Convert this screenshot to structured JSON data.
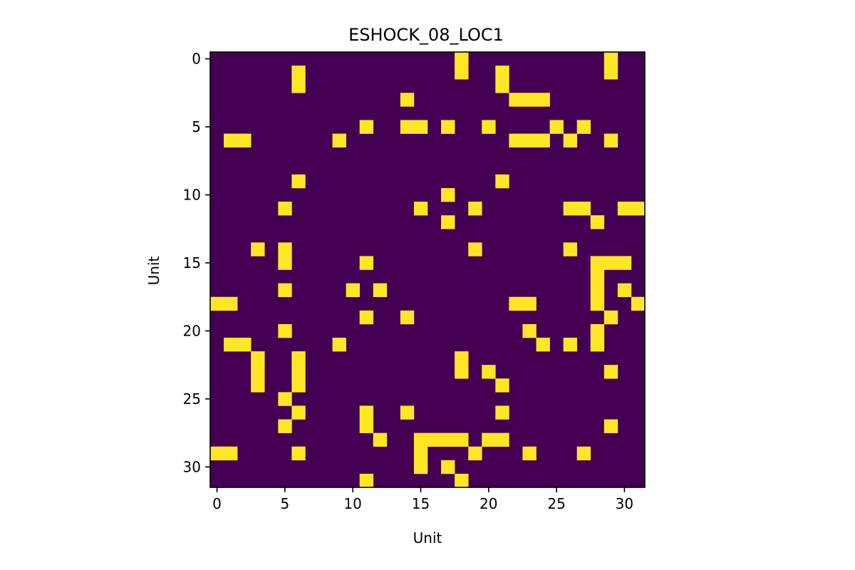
{
  "chart_data": {
    "type": "heatmap",
    "title": "ESHOCK_08_LOC1",
    "xlabel": "Unit",
    "ylabel": "Unit",
    "size": 32,
    "x_ticks": [
      "0",
      "5",
      "10",
      "15",
      "20",
      "25",
      "30"
    ],
    "y_ticks": [
      "0",
      "5",
      "10",
      "15",
      "20",
      "25",
      "30"
    ],
    "tick_values": [
      0,
      5,
      10,
      15,
      20,
      25,
      30
    ],
    "colors": {
      "low": "#440154",
      "high": "#fde725"
    },
    "active_cells": [
      [
        0,
        18
      ],
      [
        0,
        29
      ],
      [
        1,
        6
      ],
      [
        1,
        18
      ],
      [
        1,
        21
      ],
      [
        1,
        29
      ],
      [
        2,
        6
      ],
      [
        2,
        21
      ],
      [
        3,
        14
      ],
      [
        3,
        22
      ],
      [
        3,
        23
      ],
      [
        3,
        24
      ],
      [
        5,
        11
      ],
      [
        5,
        14
      ],
      [
        5,
        15
      ],
      [
        5,
        17
      ],
      [
        5,
        20
      ],
      [
        5,
        25
      ],
      [
        5,
        27
      ],
      [
        6,
        1
      ],
      [
        6,
        2
      ],
      [
        6,
        9
      ],
      [
        6,
        22
      ],
      [
        6,
        23
      ],
      [
        6,
        24
      ],
      [
        6,
        26
      ],
      [
        6,
        29
      ],
      [
        9,
        6
      ],
      [
        9,
        21
      ],
      [
        10,
        17
      ],
      [
        11,
        5
      ],
      [
        11,
        15
      ],
      [
        11,
        19
      ],
      [
        11,
        26
      ],
      [
        11,
        27
      ],
      [
        11,
        30
      ],
      [
        11,
        31
      ],
      [
        12,
        17
      ],
      [
        12,
        28
      ],
      [
        14,
        3
      ],
      [
        14,
        5
      ],
      [
        14,
        19
      ],
      [
        14,
        26
      ],
      [
        15,
        5
      ],
      [
        15,
        11
      ],
      [
        15,
        28
      ],
      [
        15,
        29
      ],
      [
        15,
        30
      ],
      [
        16,
        28
      ],
      [
        17,
        5
      ],
      [
        17,
        10
      ],
      [
        17,
        12
      ],
      [
        17,
        28
      ],
      [
        17,
        30
      ],
      [
        18,
        0
      ],
      [
        18,
        1
      ],
      [
        18,
        22
      ],
      [
        18,
        23
      ],
      [
        18,
        28
      ],
      [
        18,
        31
      ],
      [
        19,
        11
      ],
      [
        19,
        14
      ],
      [
        19,
        29
      ],
      [
        20,
        5
      ],
      [
        20,
        23
      ],
      [
        20,
        28
      ],
      [
        21,
        1
      ],
      [
        21,
        2
      ],
      [
        21,
        9
      ],
      [
        21,
        24
      ],
      [
        21,
        26
      ],
      [
        21,
        28
      ],
      [
        22,
        3
      ],
      [
        22,
        6
      ],
      [
        22,
        18
      ],
      [
        23,
        3
      ],
      [
        23,
        6
      ],
      [
        23,
        18
      ],
      [
        23,
        20
      ],
      [
        23,
        29
      ],
      [
        24,
        3
      ],
      [
        24,
        6
      ],
      [
        24,
        21
      ],
      [
        25,
        5
      ],
      [
        26,
        6
      ],
      [
        26,
        11
      ],
      [
        26,
        14
      ],
      [
        26,
        21
      ],
      [
        27,
        5
      ],
      [
        27,
        11
      ],
      [
        27,
        29
      ],
      [
        28,
        12
      ],
      [
        28,
        15
      ],
      [
        28,
        16
      ],
      [
        28,
        17
      ],
      [
        28,
        18
      ],
      [
        28,
        20
      ],
      [
        28,
        21
      ],
      [
        29,
        0
      ],
      [
        29,
        1
      ],
      [
        29,
        6
      ],
      [
        29,
        15
      ],
      [
        29,
        19
      ],
      [
        29,
        23
      ],
      [
        29,
        27
      ],
      [
        30,
        15
      ],
      [
        30,
        17
      ],
      [
        31,
        11
      ],
      [
        31,
        18
      ]
    ]
  }
}
